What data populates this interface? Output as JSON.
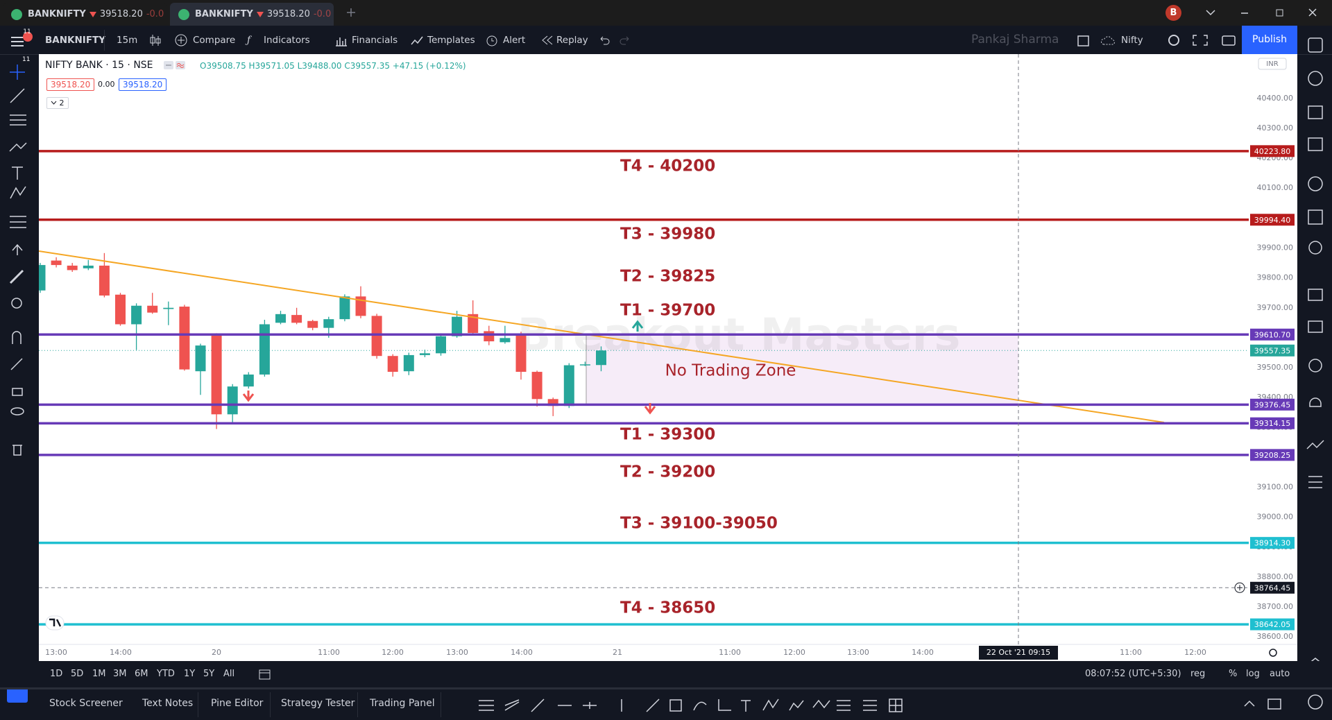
{
  "tabs": [
    {
      "symbol": "BANKNIFTY",
      "price": "39518.20",
      "change": "-0.0"
    },
    {
      "symbol": "BANKNIFTY",
      "price": "39518.20",
      "change": "-0.0"
    }
  ],
  "user_initial": "B",
  "notifications": "11",
  "toolbar": {
    "symbol": "BANKNIFTY",
    "interval": "15m",
    "compare": "Compare",
    "indicators": "Indicators",
    "financials": "Financials",
    "templates": "Templates",
    "alert": "Alert",
    "replay": "Replay",
    "user": "Pankaj Sharma",
    "layout": "Nifty",
    "publish": "Publish"
  },
  "legend": {
    "title": "NIFTY BANK · 15 · NSE",
    "ohlc": "O39508.75 H39571.05 L39488.00 C39557.35 +47.15 (+0.12%)",
    "bid": "39518.20",
    "spread": "0.00",
    "ask": "39518.20",
    "indicator_count": "2"
  },
  "chart_data": {
    "type": "candlestick",
    "currency": "INR",
    "watermark": "Breakout Masters",
    "up_color": "#26a69a",
    "down_color": "#ef5350",
    "grid": false,
    "open": [
      39758,
      39858,
      39841,
      39832,
      39841,
      39744,
      39645,
      39707,
      39696,
      39704,
      39488,
      39608,
      39344,
      39437,
      39477,
      39650,
      39676,
      39656,
      39633,
      39662,
      39738,
      39673,
      39539,
      39488,
      39542,
      39548,
      39605,
      39679,
      39622,
      39585,
      39610,
      39486,
      39395,
      39372,
      39508,
      39508.75
    ],
    "high": [
      39850,
      39869,
      39850,
      39860,
      39883,
      39750,
      39715,
      39750,
      39721,
      39710,
      39580,
      39615,
      39445,
      39485,
      39660,
      39690,
      39700,
      39660,
      39670,
      39745,
      39772,
      39680,
      39545,
      39550,
      39560,
      39615,
      39690,
      39725,
      39640,
      39640,
      39620,
      39490,
      39400,
      39515,
      39520,
      39571.05
    ],
    "low": [
      39750,
      39835,
      39820,
      39826,
      39735,
      39640,
      39559,
      39680,
      39642,
      39490,
      39409,
      39295,
      39318,
      39430,
      39470,
      39645,
      39645,
      39625,
      39600,
      39655,
      39665,
      39530,
      39470,
      39475,
      39535,
      39540,
      39600,
      39610,
      39575,
      39580,
      39460,
      39370,
      39338,
      39365,
      39505,
      39488
    ],
    "close": [
      39843,
      39843,
      39826,
      39841,
      39741,
      39645,
      39707,
      39684,
      39700,
      39494,
      39574,
      39344,
      39437,
      39477,
      39645,
      39679,
      39650,
      39633,
      39662,
      39738,
      39673,
      39539,
      39486,
      39542,
      39548,
      39605,
      39670,
      39616,
      39588,
      39599,
      39486,
      39395,
      39372,
      39508,
      39511,
      39557.35
    ],
    "ylim": [
      38575,
      40548
    ],
    "yticks": [
      {
        "value": 38600,
        "label": "38600.00"
      },
      {
        "value": 38700,
        "label": "38700.00"
      },
      {
        "value": 38800,
        "label": "38800.00"
      },
      {
        "value": 38900,
        "label": "38900.00"
      },
      {
        "value": 39000,
        "label": "39000.00"
      },
      {
        "value": 39100,
        "label": "39100.00"
      },
      {
        "value": 39200,
        "label": "39200.00"
      },
      {
        "value": 39300,
        "label": "39300.00"
      },
      {
        "value": 39400,
        "label": "39400.00"
      },
      {
        "value": 39500,
        "label": "39500.00"
      },
      {
        "value": 39600,
        "label": "39600.00"
      },
      {
        "value": 39700,
        "label": "39700.00"
      },
      {
        "value": 39800,
        "label": "39800.00"
      },
      {
        "value": 39900,
        "label": "39900.00"
      },
      {
        "value": 40000,
        "label": "40000.00"
      },
      {
        "value": 40100,
        "label": "40100.00"
      },
      {
        "value": 40200,
        "label": "40200.00"
      },
      {
        "value": 40300,
        "label": "40300.00"
      },
      {
        "value": 40400,
        "label": "40400.00"
      }
    ],
    "hlines": [
      {
        "value": 40223.8,
        "label": "40223.80",
        "color": "#b71c1c"
      },
      {
        "value": 39994.4,
        "label": "39994.40",
        "color": "#b71c1c"
      },
      {
        "value": 39610.7,
        "label": "39610.70",
        "color": "#673ab7"
      },
      {
        "value": 39376.45,
        "label": "39376.45",
        "color": "#673ab7"
      },
      {
        "value": 39314.15,
        "label": "39314.15",
        "color": "#673ab7"
      },
      {
        "value": 39208.25,
        "label": "39208.25",
        "color": "#673ab7"
      },
      {
        "value": 38914.3,
        "label": "38914.30",
        "color": "#1fbfd0"
      },
      {
        "value": 38642.05,
        "label": "38642.05",
        "color": "#1fbfd0"
      }
    ],
    "last_price": {
      "value": 39557.35,
      "label": "39557.35"
    },
    "crosshair": {
      "value": 38764.45,
      "label": "38764.45",
      "time": "22 Oct '21   09:15"
    },
    "zone_label": "No Trading Zone",
    "annotations": [
      "T4 - 40200",
      "T3 - 39980",
      "T2 - 39825",
      "T1 - 39700",
      "T1 - 39300",
      "T2 - 39200",
      "T3 - 39100-39050",
      "T4 - 38650"
    ],
    "time_labels": [
      "13:00",
      "14:00",
      "20",
      "11:00",
      "12:00",
      "13:00",
      "14:00",
      "21",
      "11:00",
      "12:00",
      "13:00",
      "14:00",
      "11:00",
      "12:00"
    ]
  },
  "ranges": [
    "1D",
    "5D",
    "1M",
    "3M",
    "6M",
    "YTD",
    "1Y",
    "5Y",
    "All"
  ],
  "status": {
    "clock": "08:07:52 (UTC+5:30)",
    "session": "reg",
    "percent": "%",
    "log": "log",
    "auto": "auto"
  },
  "panels": [
    "Stock Screener",
    "Text Notes",
    "Pine Editor",
    "Strategy Tester",
    "Trading Panel"
  ]
}
